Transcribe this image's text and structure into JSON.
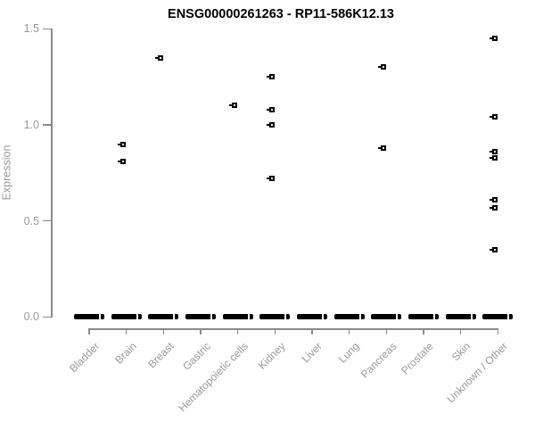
{
  "chart_data": {
    "type": "scatter",
    "title": "ENSG00000261263 - RP11-586K12.13",
    "xlabel": "",
    "ylabel": "Expression",
    "ylim": [
      0,
      1.5
    ],
    "yticks": [
      "0.0",
      "0.5",
      "1.0",
      "1.5"
    ],
    "grid": false,
    "legend": null,
    "point_color": "#000000",
    "axis_color": "#8a8a8a",
    "label_color": "#999999",
    "categories": [
      "Bladder",
      "Brain",
      "Breast",
      "Gastric",
      "Hematopoietic cells",
      "Kidney",
      "Liver",
      "Lung",
      "Pancreas",
      "Prostate",
      "Skin",
      "Unknown / Other"
    ],
    "series": [
      {
        "category": "Bladder",
        "values": [],
        "zero_cluster": true
      },
      {
        "category": "Brain",
        "values": [
          0.9,
          0.81
        ],
        "zero_cluster": true
      },
      {
        "category": "Breast",
        "values": [
          1.35
        ],
        "zero_cluster": true
      },
      {
        "category": "Gastric",
        "values": [],
        "zero_cluster": true
      },
      {
        "category": "Hematopoietic cells",
        "values": [
          1.1
        ],
        "zero_cluster": true
      },
      {
        "category": "Kidney",
        "values": [
          1.25,
          1.08,
          1.0,
          0.72
        ],
        "zero_cluster": true
      },
      {
        "category": "Liver",
        "values": [],
        "zero_cluster": true
      },
      {
        "category": "Lung",
        "values": [],
        "zero_cluster": true
      },
      {
        "category": "Pancreas",
        "values": [
          1.3,
          0.88
        ],
        "zero_cluster": true
      },
      {
        "category": "Prostate",
        "values": [],
        "zero_cluster": true
      },
      {
        "category": "Skin",
        "values": [],
        "zero_cluster": true
      },
      {
        "category": "Unknown / Other",
        "values": [
          1.45,
          1.04,
          0.86,
          0.83,
          0.61,
          0.57,
          0.35
        ],
        "zero_cluster": true
      }
    ],
    "zero_cluster_note": "every category shows a dense cluster of overlapping points at expression 0.0, rendered as a thick black dash"
  }
}
